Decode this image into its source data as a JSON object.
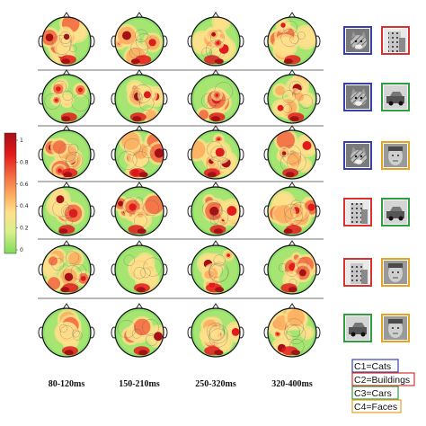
{
  "colorbar": {
    "tick_labels": [
      "1",
      "0.8",
      "0.6",
      "0.4",
      "0.2",
      "0"
    ],
    "colors": [
      "#a50f15",
      "#e31a1c",
      "#f46d43",
      "#fdae61",
      "#fee08b",
      "#d9ef8b",
      "#7fdc5a"
    ]
  },
  "time_windows": [
    "80-120ms",
    "150-210ms",
    "250-320ms",
    "320-400ms"
  ],
  "condition_pairs": [
    {
      "left": "cat",
      "right": "building"
    },
    {
      "left": "cat",
      "right": "car"
    },
    {
      "left": "cat",
      "right": "face"
    },
    {
      "left": "building",
      "right": "car"
    },
    {
      "left": "building",
      "right": "face"
    },
    {
      "left": "car",
      "right": "face"
    }
  ],
  "legend": [
    {
      "label": "C1=Cats",
      "color": "#3a3fb0"
    },
    {
      "label": "C2=Buildings",
      "color": "#d9322e"
    },
    {
      "label": "C3=Cars",
      "color": "#2e9e3e"
    },
    {
      "label": "C4=Faces",
      "color": "#e6a21e"
    }
  ],
  "category_colors": {
    "cat": "#3a3fb0",
    "building": "#d9322e",
    "car": "#2e9e3e",
    "face": "#e6a21e"
  }
}
